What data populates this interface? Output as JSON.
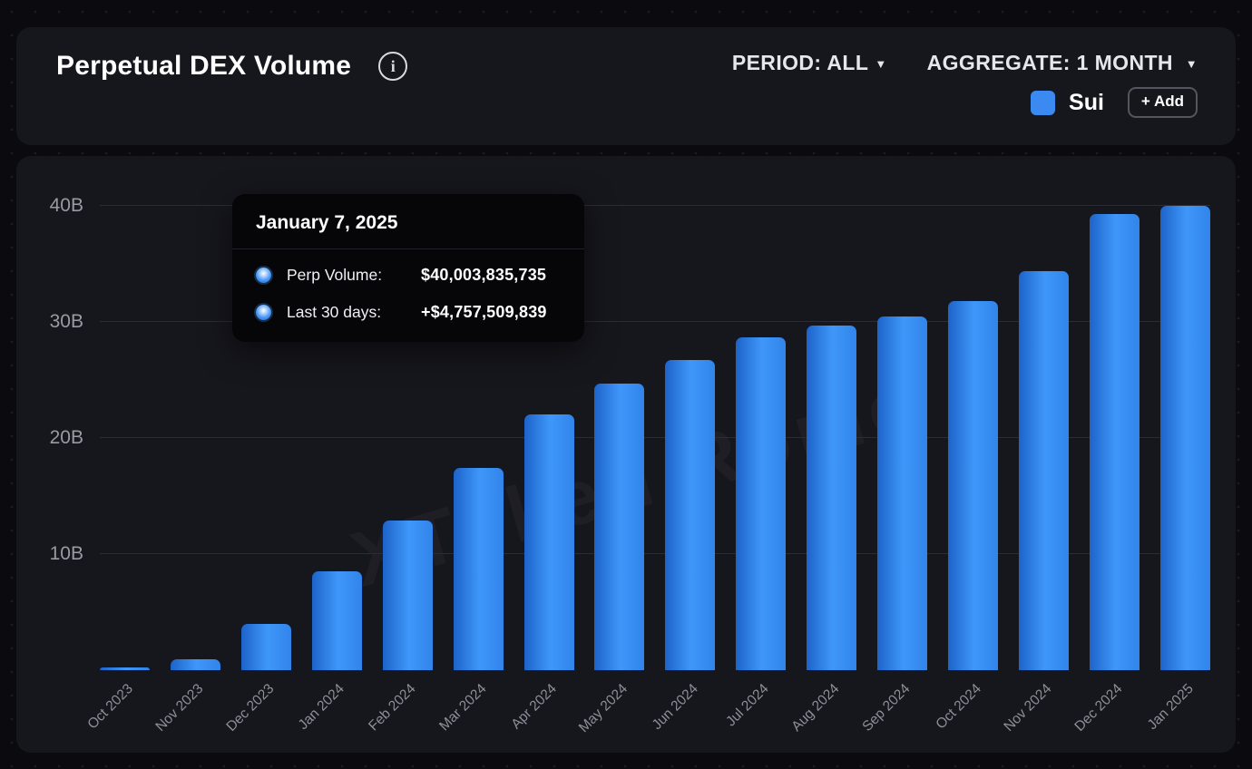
{
  "header": {
    "title": "Perpetual DEX Volume",
    "info_icon_glyph": "i",
    "caret": "▼",
    "period": {
      "label": "PERIOD:",
      "value": "ALL"
    },
    "aggregate": {
      "label": "AGGREGATE:",
      "value": "1 MONTH"
    },
    "legend": {
      "series_name": "Sui",
      "swatch_color": "#3b8af2"
    },
    "add_button_label": "+ Add"
  },
  "tooltip": {
    "date": "January 7, 2025",
    "rows": [
      {
        "label": "Perp Volume:",
        "value": "$40,003,835,735"
      },
      {
        "label": "Last 30 days:",
        "value": "+$4,757,509,839"
      }
    ]
  },
  "watermark": "XToken Rome",
  "chart_data": {
    "type": "bar",
    "title": "Perpetual DEX Volume",
    "series_name": "Sui",
    "categories": [
      "Oct 2023",
      "Nov 2023",
      "Dec 2023",
      "Jan 2024",
      "Feb 2024",
      "Mar 2024",
      "Apr 2024",
      "May 2024",
      "Jun 2024",
      "Jul 2024",
      "Aug 2024",
      "Sep 2024",
      "Oct 2024",
      "Nov 2024",
      "Dec 2024",
      "Jan 2025"
    ],
    "values": [
      0.2,
      0.9,
      4.0,
      8.5,
      12.9,
      17.4,
      22.0,
      24.7,
      26.7,
      28.7,
      29.7,
      30.5,
      31.8,
      34.4,
      39.3,
      40.0
    ],
    "unit": "B USD",
    "xlabel": "",
    "ylabel": "",
    "ylim": [
      0,
      40
    ],
    "yticks": [
      "10B",
      "20B",
      "30B",
      "40B"
    ],
    "grid": true,
    "legend_position": "top-right",
    "bar_color_gradient": [
      "#1d63c8",
      "#3f97f9"
    ]
  }
}
